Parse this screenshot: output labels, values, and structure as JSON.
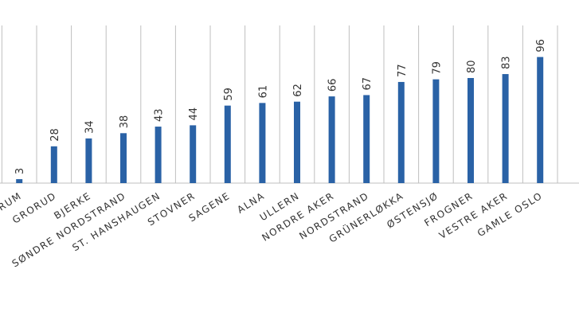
{
  "chart_data": {
    "type": "bar",
    "categories": [
      "SENTRUM",
      "GRORUD",
      "BJERKE",
      "SØNDRE NORDSTRAND",
      "ST. HANSHAUGEN",
      "STOVNER",
      "SAGENE",
      "ALNA",
      "ULLERN",
      "NORDRE AKER",
      "NORDSTRAND",
      "GRÜNERLØKKA",
      "ØSTENSJØ",
      "FROGNER",
      "VESTRE AKER",
      "GAMLE OSLO"
    ],
    "values": [
      3,
      28,
      34,
      38,
      43,
      44,
      59,
      61,
      62,
      66,
      67,
      77,
      79,
      80,
      83,
      96
    ],
    "color": "#2a62a6",
    "ylim": [
      0,
      120
    ]
  }
}
